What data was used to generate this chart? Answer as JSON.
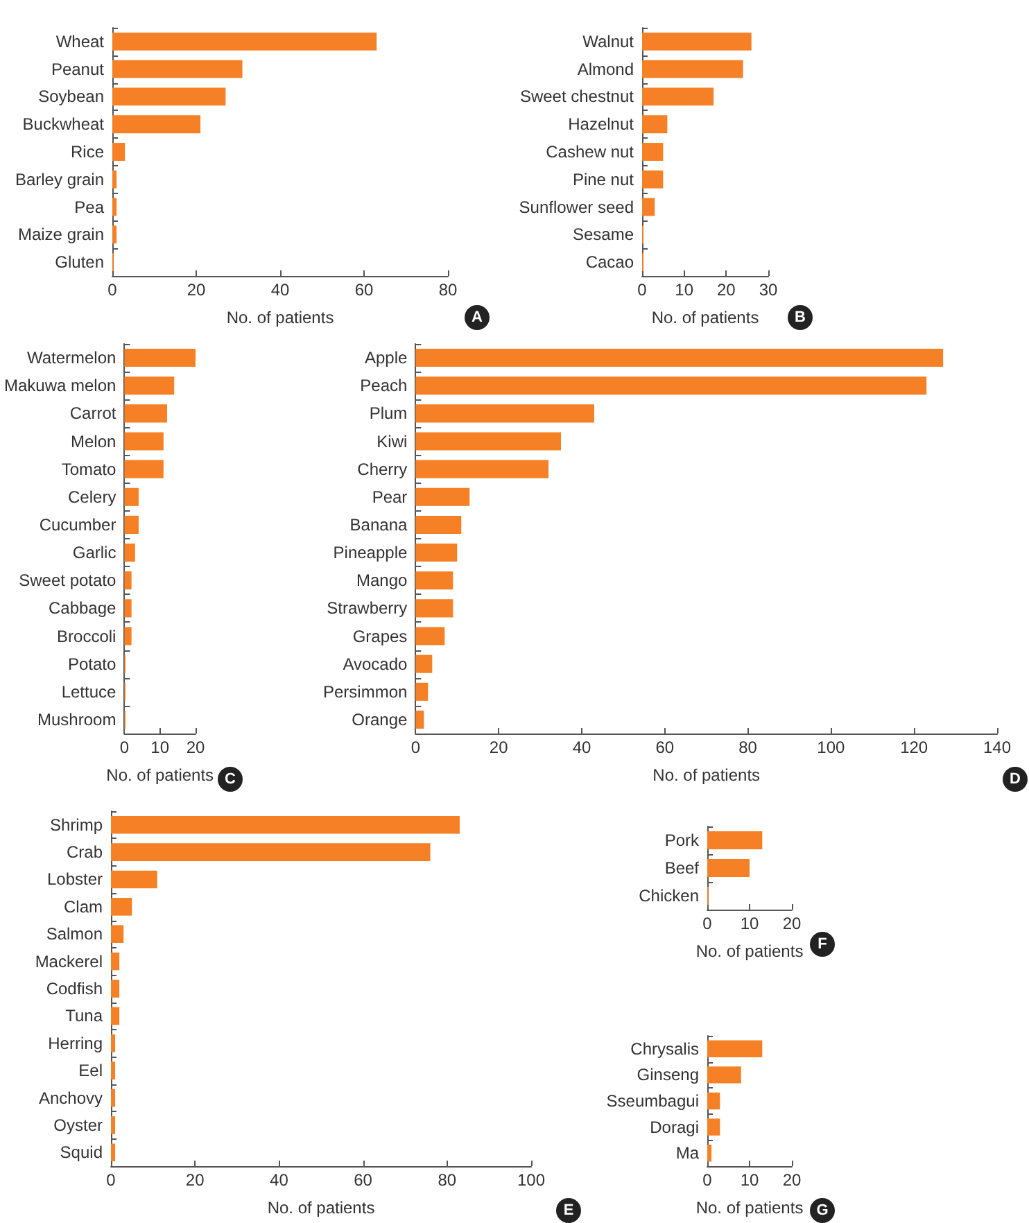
{
  "chart_data": [
    {
      "type": "bar",
      "orientation": "horizontal",
      "categories": [
        "Wheat",
        "Peanut",
        "Soybean",
        "Buckwheat",
        "Rice",
        "Barley grain",
        "Pea",
        "Maize grain",
        "Gluten"
      ],
      "values": [
        63,
        31,
        27,
        21,
        3,
        1,
        1,
        1,
        0.3
      ],
      "color": "#f58025",
      "xlabel": "No. of patients",
      "xlim": [
        0,
        80
      ],
      "xticks": [
        0,
        20,
        40,
        60,
        80
      ],
      "annotations": [
        "A"
      ]
    },
    {
      "type": "bar",
      "orientation": "horizontal",
      "categories": [
        "Walnut",
        "Almond",
        "Sweet chestnut",
        "Hazelnut",
        "Cashew nut",
        "Pine nut",
        "Sunflower seed",
        "Sesame",
        "Cacao"
      ],
      "values": [
        26,
        24,
        17,
        6,
        5,
        5,
        3,
        0.3,
        0.3
      ],
      "color": "#f58025",
      "xlabel": "No. of patients",
      "xlim": [
        0,
        30
      ],
      "xticks": [
        0,
        10,
        20,
        30
      ],
      "annotations": [
        "B"
      ]
    },
    {
      "type": "bar",
      "orientation": "horizontal",
      "categories": [
        "Watermelon",
        "Makuwa melon",
        "Carrot",
        "Melon",
        "Tomato",
        "Celery",
        "Cucumber",
        "Garlic",
        "Sweet potato",
        "Cabbage",
        "Broccoli",
        "Potato",
        "Lettuce",
        "Mushroom"
      ],
      "values": [
        20,
        14,
        12,
        11,
        11,
        4,
        4,
        3,
        2,
        2,
        2,
        0.3,
        0.3,
        0.3
      ],
      "color": "#f58025",
      "xlabel": "No. of patients",
      "xlim": [
        0,
        20
      ],
      "xticks": [
        0,
        10,
        20
      ],
      "annotations": [
        "C"
      ]
    },
    {
      "type": "bar",
      "orientation": "horizontal",
      "categories": [
        "Apple",
        "Peach",
        "Plum",
        "Kiwi",
        "Cherry",
        "Pear",
        "Banana",
        "Pineapple",
        "Mango",
        "Strawberry",
        "Grapes",
        "Avocado",
        "Persimmon",
        "Orange"
      ],
      "values": [
        127,
        123,
        43,
        35,
        32,
        13,
        11,
        10,
        9,
        9,
        7,
        4,
        3,
        2
      ],
      "color": "#f58025",
      "xlabel": "No. of patients",
      "xlim": [
        0,
        140
      ],
      "xticks": [
        0,
        20,
        40,
        60,
        80,
        100,
        120,
        140
      ],
      "annotations": [
        "D"
      ]
    },
    {
      "type": "bar",
      "orientation": "horizontal",
      "categories": [
        "Shrimp",
        "Crab",
        "Lobster",
        "Clam",
        "Salmon",
        "Mackerel",
        "Codfish",
        "Tuna",
        "Herring",
        "Eel",
        "Anchovy",
        "Oyster",
        "Squid"
      ],
      "values": [
        83,
        76,
        11,
        5,
        3,
        2,
        2,
        2,
        1,
        1,
        1,
        1,
        1
      ],
      "color": "#f58025",
      "xlabel": "No. of patients",
      "xlim": [
        0,
        100
      ],
      "xticks": [
        0,
        20,
        40,
        60,
        80,
        100
      ],
      "annotations": [
        "E"
      ]
    },
    {
      "type": "bar",
      "orientation": "horizontal",
      "categories": [
        "Pork",
        "Beef",
        "Chicken"
      ],
      "values": [
        13,
        10,
        0.3
      ],
      "color": "#f58025",
      "xlabel": "No. of patients",
      "xlim": [
        0,
        20
      ],
      "xticks": [
        0,
        10,
        20
      ],
      "annotations": [
        "F"
      ]
    },
    {
      "type": "bar",
      "orientation": "horizontal",
      "categories": [
        "Chrysalis",
        "Ginseng",
        "Sseumbagui",
        "Doragi",
        "Ma"
      ],
      "values": [
        13,
        8,
        3,
        3,
        1
      ],
      "color": "#f58025",
      "xlabel": "No. of patients",
      "xlim": [
        0,
        20
      ],
      "xticks": [
        0,
        10,
        20
      ],
      "annotations": [
        "G"
      ]
    }
  ]
}
